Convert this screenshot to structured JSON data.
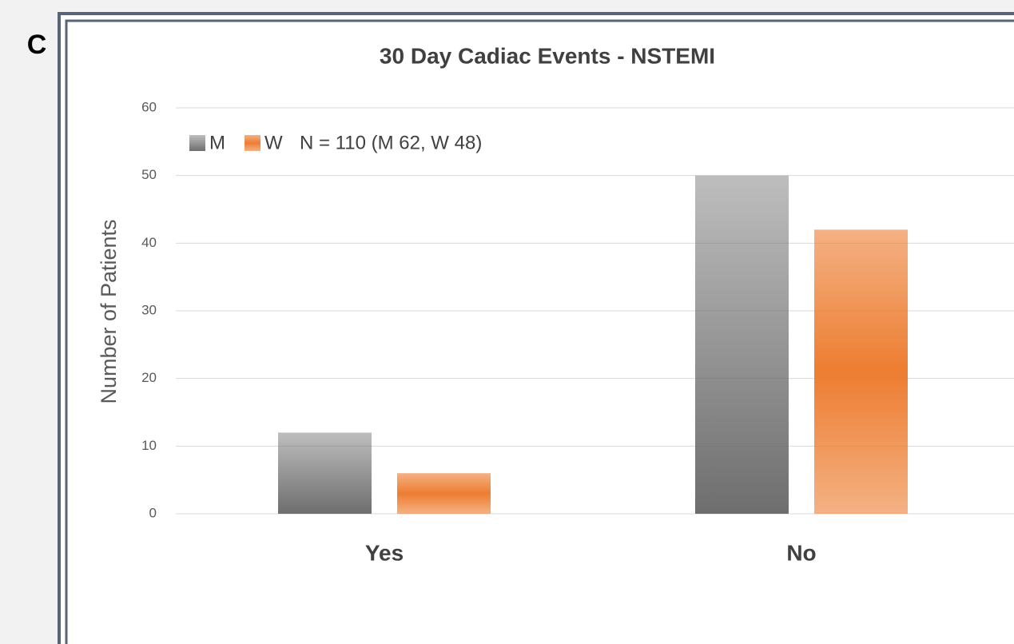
{
  "panel_label": "C",
  "chart_data": {
    "type": "bar",
    "title": "30 Day Cadiac Events - NSTEMI",
    "ylabel": "Number of Patients",
    "annotation": "N = 110  (M 62, W 48)",
    "categories": [
      "Yes",
      "No"
    ],
    "series": [
      {
        "name": "M",
        "color": "#6e6e6e",
        "values": [
          12,
          50
        ]
      },
      {
        "name": "W",
        "color": "#ed7d31",
        "values": [
          6,
          42
        ]
      }
    ],
    "ylim": [
      0,
      60
    ],
    "yticks": [
      0,
      10,
      20,
      30,
      40,
      50,
      60
    ],
    "grid": true,
    "legend": "top-left"
  }
}
